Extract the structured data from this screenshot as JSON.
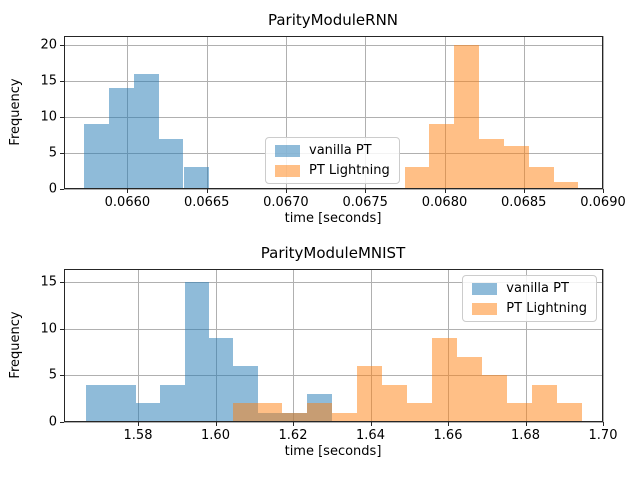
{
  "figure": {
    "background": "#ffffff",
    "grid_color": "#b0b0b0",
    "spine_color": "#262626",
    "text_color": "#000000",
    "series_colors": {
      "vanilla_pt_fill": "rgba(31,119,180,0.5)",
      "pt_lightning_fill": "rgba(255,127,14,0.5)",
      "vanilla_pt_base": "#1f77b4",
      "pt_lightning_base": "#ff7f0e",
      "overlap_seen": "#c79d73"
    }
  },
  "chart_data": [
    {
      "type": "bar",
      "subtype": "histogram",
      "title": "ParityModuleRNN",
      "xlabel": "time [seconds]",
      "ylabel": "Frequency",
      "xlim": [
        0.0656,
        0.069
      ],
      "ylim": [
        0,
        21.25
      ],
      "grid": true,
      "legend_loc": "center",
      "xticks": [
        {
          "v": 0.066,
          "label": "0.0660"
        },
        {
          "v": 0.0665,
          "label": "0.0665"
        },
        {
          "v": 0.067,
          "label": "0.0670"
        },
        {
          "v": 0.0675,
          "label": "0.0675"
        },
        {
          "v": 0.068,
          "label": "0.0680"
        },
        {
          "v": 0.0685,
          "label": "0.0685"
        },
        {
          "v": 0.069,
          "label": "0.0690"
        }
      ],
      "yticks": [
        {
          "v": 0,
          "label": "0"
        },
        {
          "v": 5,
          "label": "5"
        },
        {
          "v": 10,
          "label": "10"
        },
        {
          "v": 15,
          "label": "15"
        },
        {
          "v": 20,
          "label": "20"
        }
      ],
      "series": [
        {
          "name": "vanilla PT",
          "color": "rgba(31,119,180,0.5)",
          "bin_edges": [
            0.065728,
            0.065886,
            0.066044,
            0.066202,
            0.066354,
            0.066512
          ],
          "counts": [
            9,
            14,
            16,
            7,
            3
          ]
        },
        {
          "name": "PT Lightning",
          "color": "rgba(255,127,14,0.5)",
          "bin_edges": [
            0.067749,
            0.067901,
            0.068059,
            0.068217,
            0.068375,
            0.068533,
            0.068691,
            0.068842
          ],
          "counts": [
            3,
            9,
            20,
            7,
            6,
            3,
            1
          ]
        }
      ]
    },
    {
      "type": "bar",
      "subtype": "histogram",
      "title": "ParityModuleMNIST",
      "xlabel": "time [seconds]",
      "ylabel": "Frequency",
      "xlim": [
        1.5609,
        1.7
      ],
      "ylim": [
        0,
        16.4
      ],
      "grid": true,
      "legend_loc": "upper right",
      "xticks": [
        {
          "v": 1.58,
          "label": "1.58"
        },
        {
          "v": 1.6,
          "label": "1.60"
        },
        {
          "v": 1.62,
          "label": "1.62"
        },
        {
          "v": 1.64,
          "label": "1.64"
        },
        {
          "v": 1.66,
          "label": "1.66"
        },
        {
          "v": 1.68,
          "label": "1.68"
        },
        {
          "v": 1.7,
          "label": "1.70"
        }
      ],
      "yticks": [
        {
          "v": 0,
          "label": "0"
        },
        {
          "v": 5,
          "label": "5"
        },
        {
          "v": 10,
          "label": "10"
        },
        {
          "v": 15,
          "label": "15"
        }
      ],
      "series": [
        {
          "name": "vanilla PT",
          "color": "rgba(31,119,180,0.5)",
          "bin_edges": [
            1.56658,
            1.57303,
            1.57948,
            1.58568,
            1.59213,
            1.59832,
            1.60452,
            1.61097,
            1.61742,
            1.62361,
            1.63006
          ],
          "counts": [
            4,
            4,
            2,
            4,
            15,
            9,
            6,
            1,
            1,
            3
          ]
        },
        {
          "name": "PT Lightning",
          "color": "rgba(255,127,14,0.5)",
          "bin_edges": [
            1.60452,
            1.61097,
            1.61716,
            1.62361,
            1.63006,
            1.63652,
            1.64297,
            1.64942,
            1.65587,
            1.66232,
            1.66877,
            1.67523,
            1.68168,
            1.68813,
            1.69458
          ],
          "counts": [
            2,
            2,
            1,
            2,
            1,
            6,
            4,
            2,
            9,
            7,
            5,
            2,
            4,
            2
          ]
        }
      ]
    }
  ]
}
